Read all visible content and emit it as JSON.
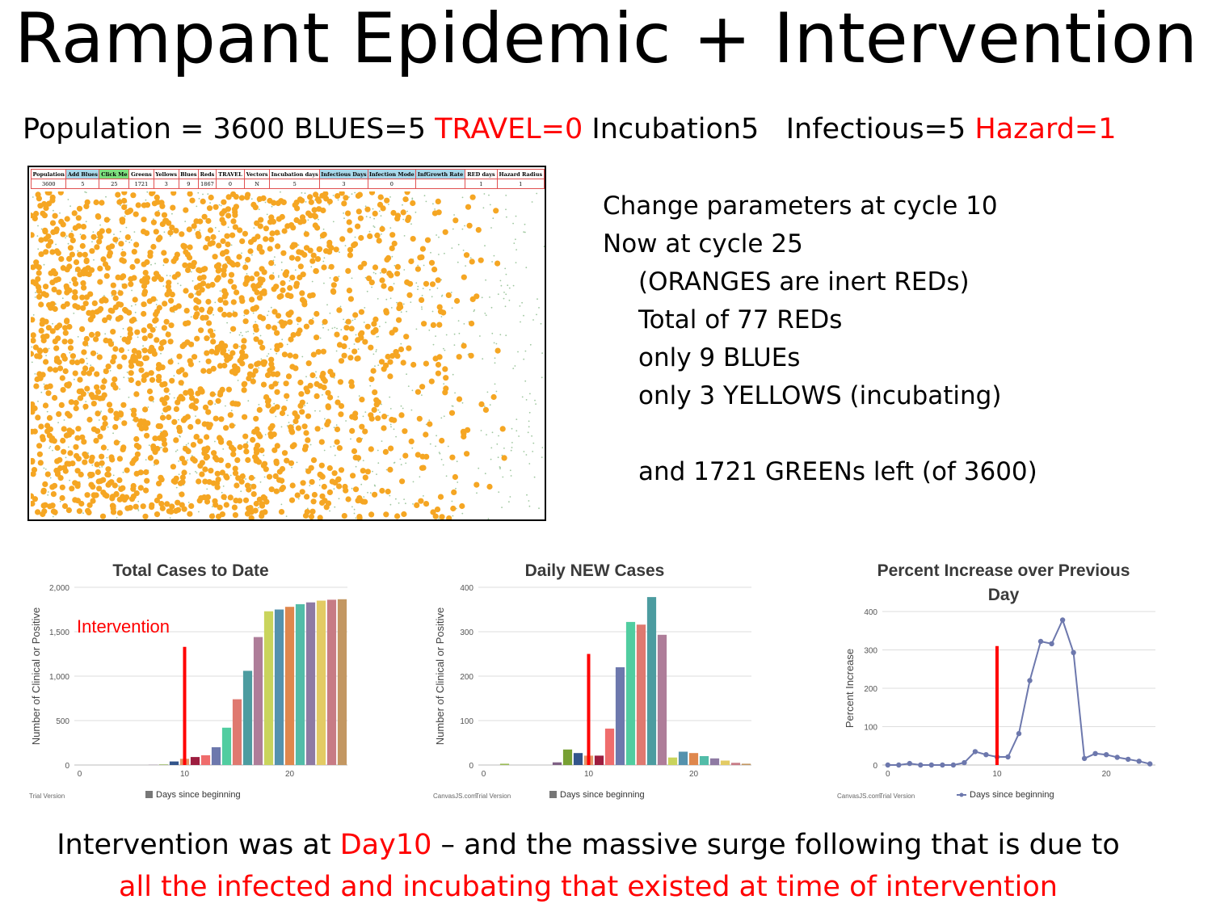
{
  "title": "Rampant Epidemic + Intervention",
  "params": {
    "population": "Population = 3600",
    "blues": "BLUES=5",
    "travel": "TRAVEL=0",
    "incubation": "Incubation5",
    "infectious": "Infectious=5",
    "hazard": "Hazard=1"
  },
  "sim_table": {
    "headers": [
      "Population",
      "Add Blues",
      "Click Me",
      "Greens",
      "Yellows",
      "Blues",
      "Reds",
      "TRAVEL",
      "Vectors",
      "Incubation days",
      "Infectious Days",
      "Infection Mode",
      "InfGrowth Rate",
      "RED days",
      "Hazard Radius"
    ],
    "values": [
      "3600",
      "5",
      "25",
      "1721",
      "3",
      "9",
      "1867",
      "0",
      "N",
      "5",
      "3",
      "0",
      "",
      "1",
      "1"
    ]
  },
  "notes": {
    "line1": "Change parameters at cycle 10",
    "line2": "Now at cycle 25",
    "line3": "(ORANGES are inert REDs)",
    "line4": "Total of 77 REDs",
    "line5": "only 9 BLUEs",
    "line6": "only 3 YELLOWS (incubating)",
    "line7": "and 1721 GREENs left (of 3600)"
  },
  "colors": {
    "orange": "#f5a623",
    "red": "#ff0000",
    "line": "#6d78ad"
  },
  "chart_data": [
    {
      "type": "bar",
      "title": "Total Cases to Date",
      "ylabel": "Number of Clinical or Positive",
      "legend": "Days since beginning",
      "footer_left": "Trial Version",
      "footer_right": "",
      "annotation": "Intervention",
      "intervention_x": 10,
      "intervention_y": 1330,
      "xlim": [
        -0.5,
        25.5
      ],
      "ylim": [
        0,
        2000
      ],
      "yticks": [
        0,
        500,
        1000,
        1500,
        2000
      ],
      "yticklabels": [
        "0",
        "500",
        "1,000",
        "1,500",
        "2,000"
      ],
      "xticks": [
        0,
        10,
        20
      ],
      "x": [
        0,
        1,
        2,
        3,
        4,
        5,
        6,
        7,
        8,
        9,
        10,
        11,
        12,
        13,
        14,
        15,
        16,
        17,
        18,
        19,
        20,
        21,
        22,
        23,
        24,
        25
      ],
      "values": [
        0,
        0,
        0,
        0,
        0,
        0,
        0,
        2,
        5,
        40,
        70,
        90,
        110,
        200,
        420,
        740,
        1060,
        1440,
        1730,
        1750,
        1780,
        1810,
        1830,
        1850,
        1860,
        1865
      ]
    },
    {
      "type": "bar",
      "title": "Daily NEW Cases",
      "ylabel": "Number of Clinical or Positive",
      "legend": "Days since beginning",
      "footer_left": "CanvasJS.com",
      "footer_right": "Trial Version",
      "annotation": "",
      "intervention_x": 10,
      "intervention_y": 250,
      "xlim": [
        -0.5,
        25.5
      ],
      "ylim": [
        0,
        400
      ],
      "yticks": [
        0,
        100,
        200,
        300,
        400
      ],
      "yticklabels": [
        "0",
        "100",
        "200",
        "300",
        "400"
      ],
      "xticks": [
        0,
        10,
        20
      ],
      "x": [
        0,
        1,
        2,
        3,
        4,
        5,
        6,
        7,
        8,
        9,
        10,
        11,
        12,
        13,
        14,
        15,
        16,
        17,
        18,
        19,
        20,
        21,
        22,
        23,
        24,
        25
      ],
      "values": [
        0,
        0,
        3,
        0,
        0,
        0,
        0,
        6,
        35,
        27,
        21,
        21,
        82,
        220,
        322,
        316,
        378,
        293,
        17,
        30,
        27,
        20,
        15,
        10,
        5,
        3
      ]
    },
    {
      "type": "line",
      "title": "Percent Increase over Previous Day",
      "ylabel": "Percent Increase",
      "legend": "Days since beginning",
      "footer_left": "CanvasJS.com",
      "footer_right": "Trial Version",
      "annotation": "",
      "intervention_x": 10,
      "intervention_y": 310,
      "xlim": [
        -0.5,
        24.5
      ],
      "ylim": [
        0,
        400
      ],
      "yticks": [
        0,
        100,
        200,
        300,
        400
      ],
      "yticklabels": [
        "0",
        "100",
        "200",
        "300",
        "400"
      ],
      "xticks": [
        0,
        10,
        20
      ],
      "x": [
        0,
        1,
        2,
        3,
        4,
        5,
        6,
        7,
        8,
        9,
        10,
        11,
        12,
        13,
        14,
        15,
        16,
        17,
        18,
        19,
        20,
        21,
        22,
        23,
        24
      ],
      "values": [
        0,
        0,
        4,
        0,
        0,
        0,
        0,
        6,
        35,
        27,
        21,
        21,
        82,
        220,
        322,
        316,
        378,
        293,
        17,
        30,
        27,
        20,
        15,
        10,
        3
      ]
    }
  ],
  "bottom": {
    "l1_a": "Intervention was at ",
    "l1_b": "Day10",
    "l1_c": " – and the massive surge following that is due to",
    "l2": "all the infected and incubating that existed at time of intervention"
  }
}
